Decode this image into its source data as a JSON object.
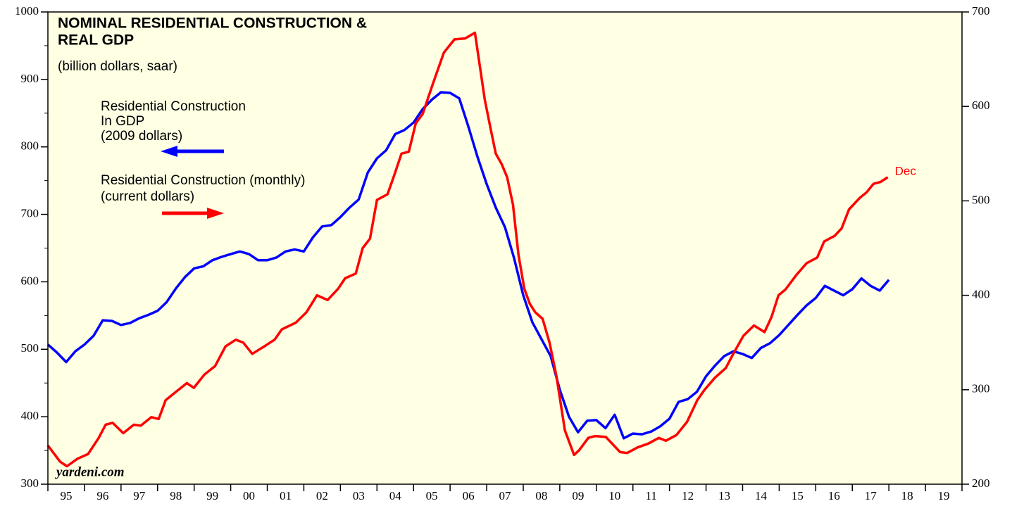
{
  "chart_data": {
    "type": "line",
    "title": [
      "NOMINAL RESIDENTIAL CONSTRUCTION &",
      "REAL GDP"
    ],
    "subtitle": "(billion dollars, saar)",
    "annotations": [
      "Dec",
      "yardeni.com"
    ],
    "xlim": [
      1995,
      2020
    ],
    "xticks": [
      {
        "value": 1995.5,
        "label": "95"
      },
      {
        "value": 1996.5,
        "label": "96"
      },
      {
        "value": 1997.5,
        "label": "97"
      },
      {
        "value": 1998.5,
        "label": "98"
      },
      {
        "value": 1999.5,
        "label": "99"
      },
      {
        "value": 2000.5,
        "label": "00"
      },
      {
        "value": 2001.5,
        "label": "01"
      },
      {
        "value": 2002.5,
        "label": "02"
      },
      {
        "value": 2003.5,
        "label": "03"
      },
      {
        "value": 2004.5,
        "label": "04"
      },
      {
        "value": 2005.5,
        "label": "05"
      },
      {
        "value": 2006.5,
        "label": "06"
      },
      {
        "value": 2007.5,
        "label": "07"
      },
      {
        "value": 2008.5,
        "label": "08"
      },
      {
        "value": 2009.5,
        "label": "09"
      },
      {
        "value": 2010.5,
        "label": "10"
      },
      {
        "value": 2011.5,
        "label": "11"
      },
      {
        "value": 2012.5,
        "label": "12"
      },
      {
        "value": 2013.5,
        "label": "13"
      },
      {
        "value": 2014.5,
        "label": "14"
      },
      {
        "value": 2015.5,
        "label": "15"
      },
      {
        "value": 2016.5,
        "label": "16"
      },
      {
        "value": 2017.5,
        "label": "17"
      },
      {
        "value": 2018.5,
        "label": "18"
      },
      {
        "value": 2019.5,
        "label": "19"
      }
    ],
    "ylim": [
      300,
      1000
    ],
    "yticks": [
      300,
      400,
      500,
      600,
      700,
      800,
      900,
      1000
    ],
    "y2lim": [
      200,
      700
    ],
    "y2ticks": [
      200,
      300,
      400,
      500,
      600,
      700
    ],
    "series": [
      {
        "name": [
          "Residential Construction",
          "In GDP",
          "(2009 dollars)"
        ],
        "color": "#0000ff",
        "axis": "y",
        "x": [
          1995,
          1995.25,
          1995.5,
          1995.75,
          1996,
          1996.25,
          1996.5,
          1996.75,
          1997,
          1997.25,
          1997.5,
          1997.75,
          1998,
          1998.25,
          1998.5,
          1998.75,
          1999,
          1999.25,
          1999.5,
          1999.75,
          2000,
          2000.25,
          2000.5,
          2000.75,
          2001,
          2001.25,
          2001.5,
          2001.75,
          2002,
          2002.25,
          2002.5,
          2002.75,
          2003,
          2003.25,
          2003.5,
          2003.75,
          2004,
          2004.25,
          2004.5,
          2004.75,
          2005,
          2005.25,
          2005.5,
          2005.75,
          2006,
          2006.25,
          2006.5,
          2006.75,
          2007,
          2007.25,
          2007.5,
          2007.75,
          2008,
          2008.25,
          2008.5,
          2008.75,
          2009,
          2009.25,
          2009.5,
          2009.75,
          2010,
          2010.25,
          2010.5,
          2010.75,
          2011,
          2011.25,
          2011.5,
          2011.75,
          2012,
          2012.25,
          2012.5,
          2012.75,
          2013,
          2013.25,
          2013.5,
          2013.75,
          2014,
          2014.25,
          2014.5,
          2014.75,
          2015,
          2015.25,
          2015.5,
          2015.75,
          2016,
          2016.25,
          2016.5,
          2016.75,
          2017,
          2017.25,
          2017.5,
          2017.75,
          2018
        ],
        "values": [
          507,
          495,
          481,
          497,
          507,
          520,
          543,
          542,
          536,
          539,
          546,
          551,
          557,
          570,
          590,
          607,
          620,
          623,
          632,
          637,
          641,
          645,
          641,
          632,
          632,
          636,
          645,
          648,
          645,
          666,
          682,
          684,
          696,
          710,
          722,
          762,
          783,
          795,
          819,
          825,
          836,
          856,
          870,
          881,
          880,
          872,
          830,
          785,
          745,
          710,
          681,
          635,
          580,
          540,
          515,
          490,
          440,
          400,
          377,
          394,
          395,
          383,
          403,
          368,
          375,
          374,
          378,
          386,
          397,
          422,
          426,
          437,
          460,
          476,
          490,
          497,
          493,
          487,
          502,
          509,
          521,
          536,
          551,
          565,
          576,
          594,
          587,
          580,
          589,
          605,
          594,
          587,
          603
        ]
      },
      {
        "name": [
          "Residential Construction (monthly)",
          "(current dollars)"
        ],
        "color": "#ff0000",
        "axis": "y2",
        "x": [
          1995,
          1995.33,
          1995.52,
          1995.81,
          1996.1,
          1996.39,
          1996.58,
          1996.77,
          1997.06,
          1997.35,
          1997.54,
          1997.83,
          1998.03,
          1998.22,
          1998.51,
          1998.8,
          1998.99,
          1999.28,
          1999.57,
          1999.86,
          2000.14,
          2000.34,
          2000.59,
          2000.92,
          2001.2,
          2001.4,
          2001.78,
          2002.07,
          2002.36,
          2002.65,
          2002.94,
          2003.13,
          2003.42,
          2003.61,
          2003.81,
          2004,
          2004.29,
          2004.48,
          2004.67,
          2004.87,
          2005.06,
          2005.25,
          2005.54,
          2005.83,
          2006.12,
          2006.41,
          2006.68,
          2006.79,
          2006.95,
          2007.1,
          2007.25,
          2007.41,
          2007.56,
          2007.72,
          2007.87,
          2008.03,
          2008.18,
          2008.33,
          2008.53,
          2008.72,
          2008.91,
          2009.14,
          2009.39,
          2009.53,
          2009.78,
          2009.97,
          2010.26,
          2010.65,
          2010.84,
          2011.13,
          2011.42,
          2011.71,
          2011.9,
          2012.19,
          2012.48,
          2012.76,
          2012.96,
          2013.25,
          2013.54,
          2013.73,
          2014.02,
          2014.31,
          2014.6,
          2014.79,
          2014.98,
          2015.17,
          2015.46,
          2015.75,
          2016.04,
          2016.23,
          2016.52,
          2016.71,
          2016.91,
          2017.2,
          2017.39,
          2017.58,
          2017.77,
          2017.97
        ],
        "values": [
          241,
          224,
          219,
          227,
          232,
          249,
          263,
          265,
          254,
          263,
          262,
          271,
          269,
          289,
          298,
          307,
          302,
          316,
          325,
          346,
          353,
          350,
          338,
          346,
          353,
          364,
          371,
          382,
          400,
          395,
          407,
          418,
          423,
          450,
          460,
          501,
          507,
          528,
          550,
          552,
          582,
          592,
          625,
          657,
          671,
          672,
          678,
          649,
          607,
          578,
          550,
          539,
          525,
          496,
          443,
          407,
          391,
          382,
          375,
          350,
          314,
          257,
          231,
          236,
          249,
          251,
          250,
          234,
          233,
          239,
          243,
          249,
          246,
          252,
          266,
          289,
          300,
          313,
          323,
          337,
          357,
          368,
          361,
          377,
          400,
          406,
          421,
          434,
          440,
          457,
          463,
          471,
          491,
          503,
          509,
          518,
          520,
          525
        ]
      }
    ]
  }
}
